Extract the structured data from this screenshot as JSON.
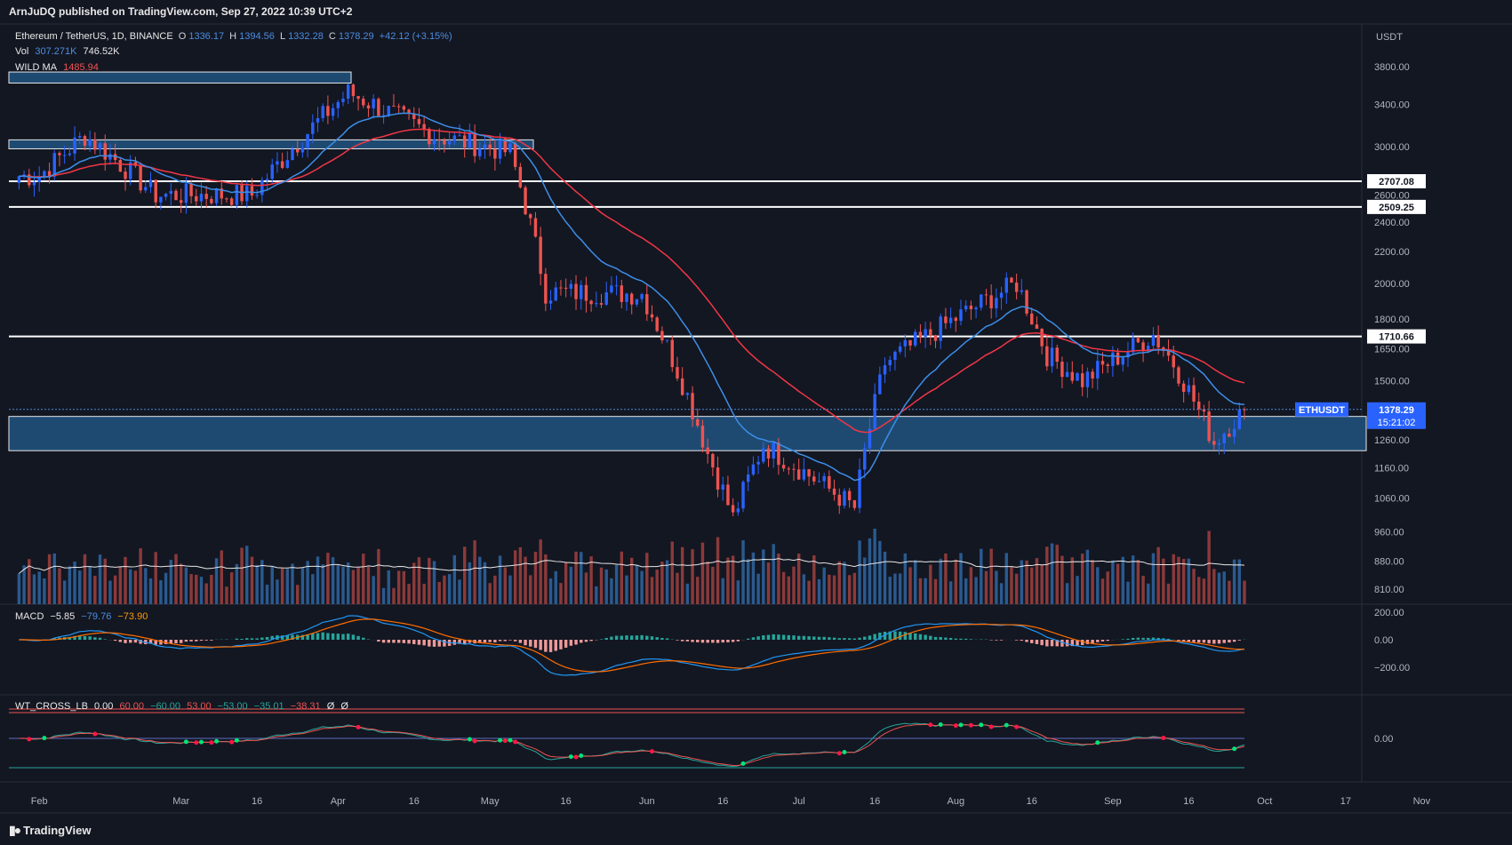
{
  "header": {
    "publisher": "ArnJuDQ published on TradingView.com, Sep 27, 2022 10:39 UTC+2"
  },
  "symbol": {
    "title": "Ethereum / TetherUS, 1D, BINANCE",
    "o_label": "O",
    "o": "1336.17",
    "h_label": "H",
    "h": "1394.56",
    "l_label": "L",
    "l": "1332.28",
    "c_label": "C",
    "c": "1378.29",
    "change": "+42.12 (+3.15%)"
  },
  "volume": {
    "label": "Vol",
    "value1": "307.271K",
    "value2": "746.52K"
  },
  "wild_ma": {
    "label": "WILD MA",
    "value": "1485.94"
  },
  "macd": {
    "label": "MACD",
    "v1": "−5.85",
    "v2": "−79.76",
    "v3": "−73.90"
  },
  "wt": {
    "label": "WT_CROSS_LB",
    "v0": "0.00",
    "v1": "60.00",
    "v2": "−60.00",
    "v3": "53.00",
    "v4": "−53.00",
    "v5": "−35.01",
    "v6": "−38.31",
    "v7": "Ø",
    "v8": "Ø"
  },
  "price_axis": {
    "currency": "USDT",
    "ticks": [
      "3800.00",
      "3400.00",
      "3000.00",
      "2600.00",
      "2400.00",
      "2200.00",
      "2000.00",
      "1800.00",
      "1650.00",
      "1500.00",
      "1260.00",
      "1160.00",
      "1060.00",
      "960.00",
      "880.00",
      "810.00"
    ]
  },
  "level_labels": [
    "2707.08",
    "2509.25",
    "1710.66"
  ],
  "current_price": {
    "symbol": "ETHUSDT",
    "price": "1378.29",
    "countdown": "15:21:02"
  },
  "macd_axis": [
    "200.00",
    "0.00",
    "−200.00"
  ],
  "wt_axis": [
    "0.00"
  ],
  "time_axis": [
    "Feb",
    "Mar",
    "16",
    "Apr",
    "16",
    "May",
    "16",
    "Jun",
    "16",
    "Jul",
    "16",
    "Aug",
    "16",
    "Sep",
    "16",
    "Oct",
    "17",
    "Nov"
  ],
  "footer": {
    "brand": "TradingView"
  },
  "colors": {
    "bg": "#131722",
    "up": "#2962ff",
    "down": "#ef5350",
    "ma": "#f23645",
    "zone": "#1e4a72",
    "macd": "#2196f3",
    "signal": "#ff6d00"
  },
  "chart_data": {
    "type": "candlestick",
    "title": "Ethereum / TetherUS, 1D, BINANCE",
    "xlabel": "",
    "ylabel": "USDT",
    "x_range": [
      "2022-01-26",
      "2022-09-27"
    ],
    "ylim": [
      810,
      3800
    ],
    "y_scale": "log",
    "key_points": [
      {
        "date": "2022-02-01",
        "close": 2750
      },
      {
        "date": "2022-02-10",
        "close": 3100
      },
      {
        "date": "2022-02-24",
        "close": 2600
      },
      {
        "date": "2022-03-15",
        "close": 2600
      },
      {
        "date": "2022-04-03",
        "close": 3520
      },
      {
        "date": "2022-04-20",
        "close": 3100
      },
      {
        "date": "2022-05-05",
        "close": 2950
      },
      {
        "date": "2022-05-12",
        "close": 1950
      },
      {
        "date": "2022-05-31",
        "close": 1940
      },
      {
        "date": "2022-06-13",
        "close": 1210
      },
      {
        "date": "2022-06-18",
        "close": 1000
      },
      {
        "date": "2022-06-24",
        "close": 1240
      },
      {
        "date": "2022-07-12",
        "close": 1030
      },
      {
        "date": "2022-07-18",
        "close": 1580
      },
      {
        "date": "2022-07-28",
        "close": 1740
      },
      {
        "date": "2022-08-13",
        "close": 2000
      },
      {
        "date": "2022-08-19",
        "close": 1620
      },
      {
        "date": "2022-08-26",
        "close": 1500
      },
      {
        "date": "2022-09-09",
        "close": 1720
      },
      {
        "date": "2022-09-13",
        "close": 1580
      },
      {
        "date": "2022-09-21",
        "close": 1250
      },
      {
        "date": "2022-09-27",
        "close": 1378.29
      }
    ],
    "horizontal_levels": [
      2707.08,
      2509.25,
      1710.66
    ],
    "zones": [
      [
        3620,
        3740
      ],
      [
        2980,
        3060
      ],
      [
        1220,
        1350
      ]
    ],
    "wild_ma_last": 1485.94
  }
}
